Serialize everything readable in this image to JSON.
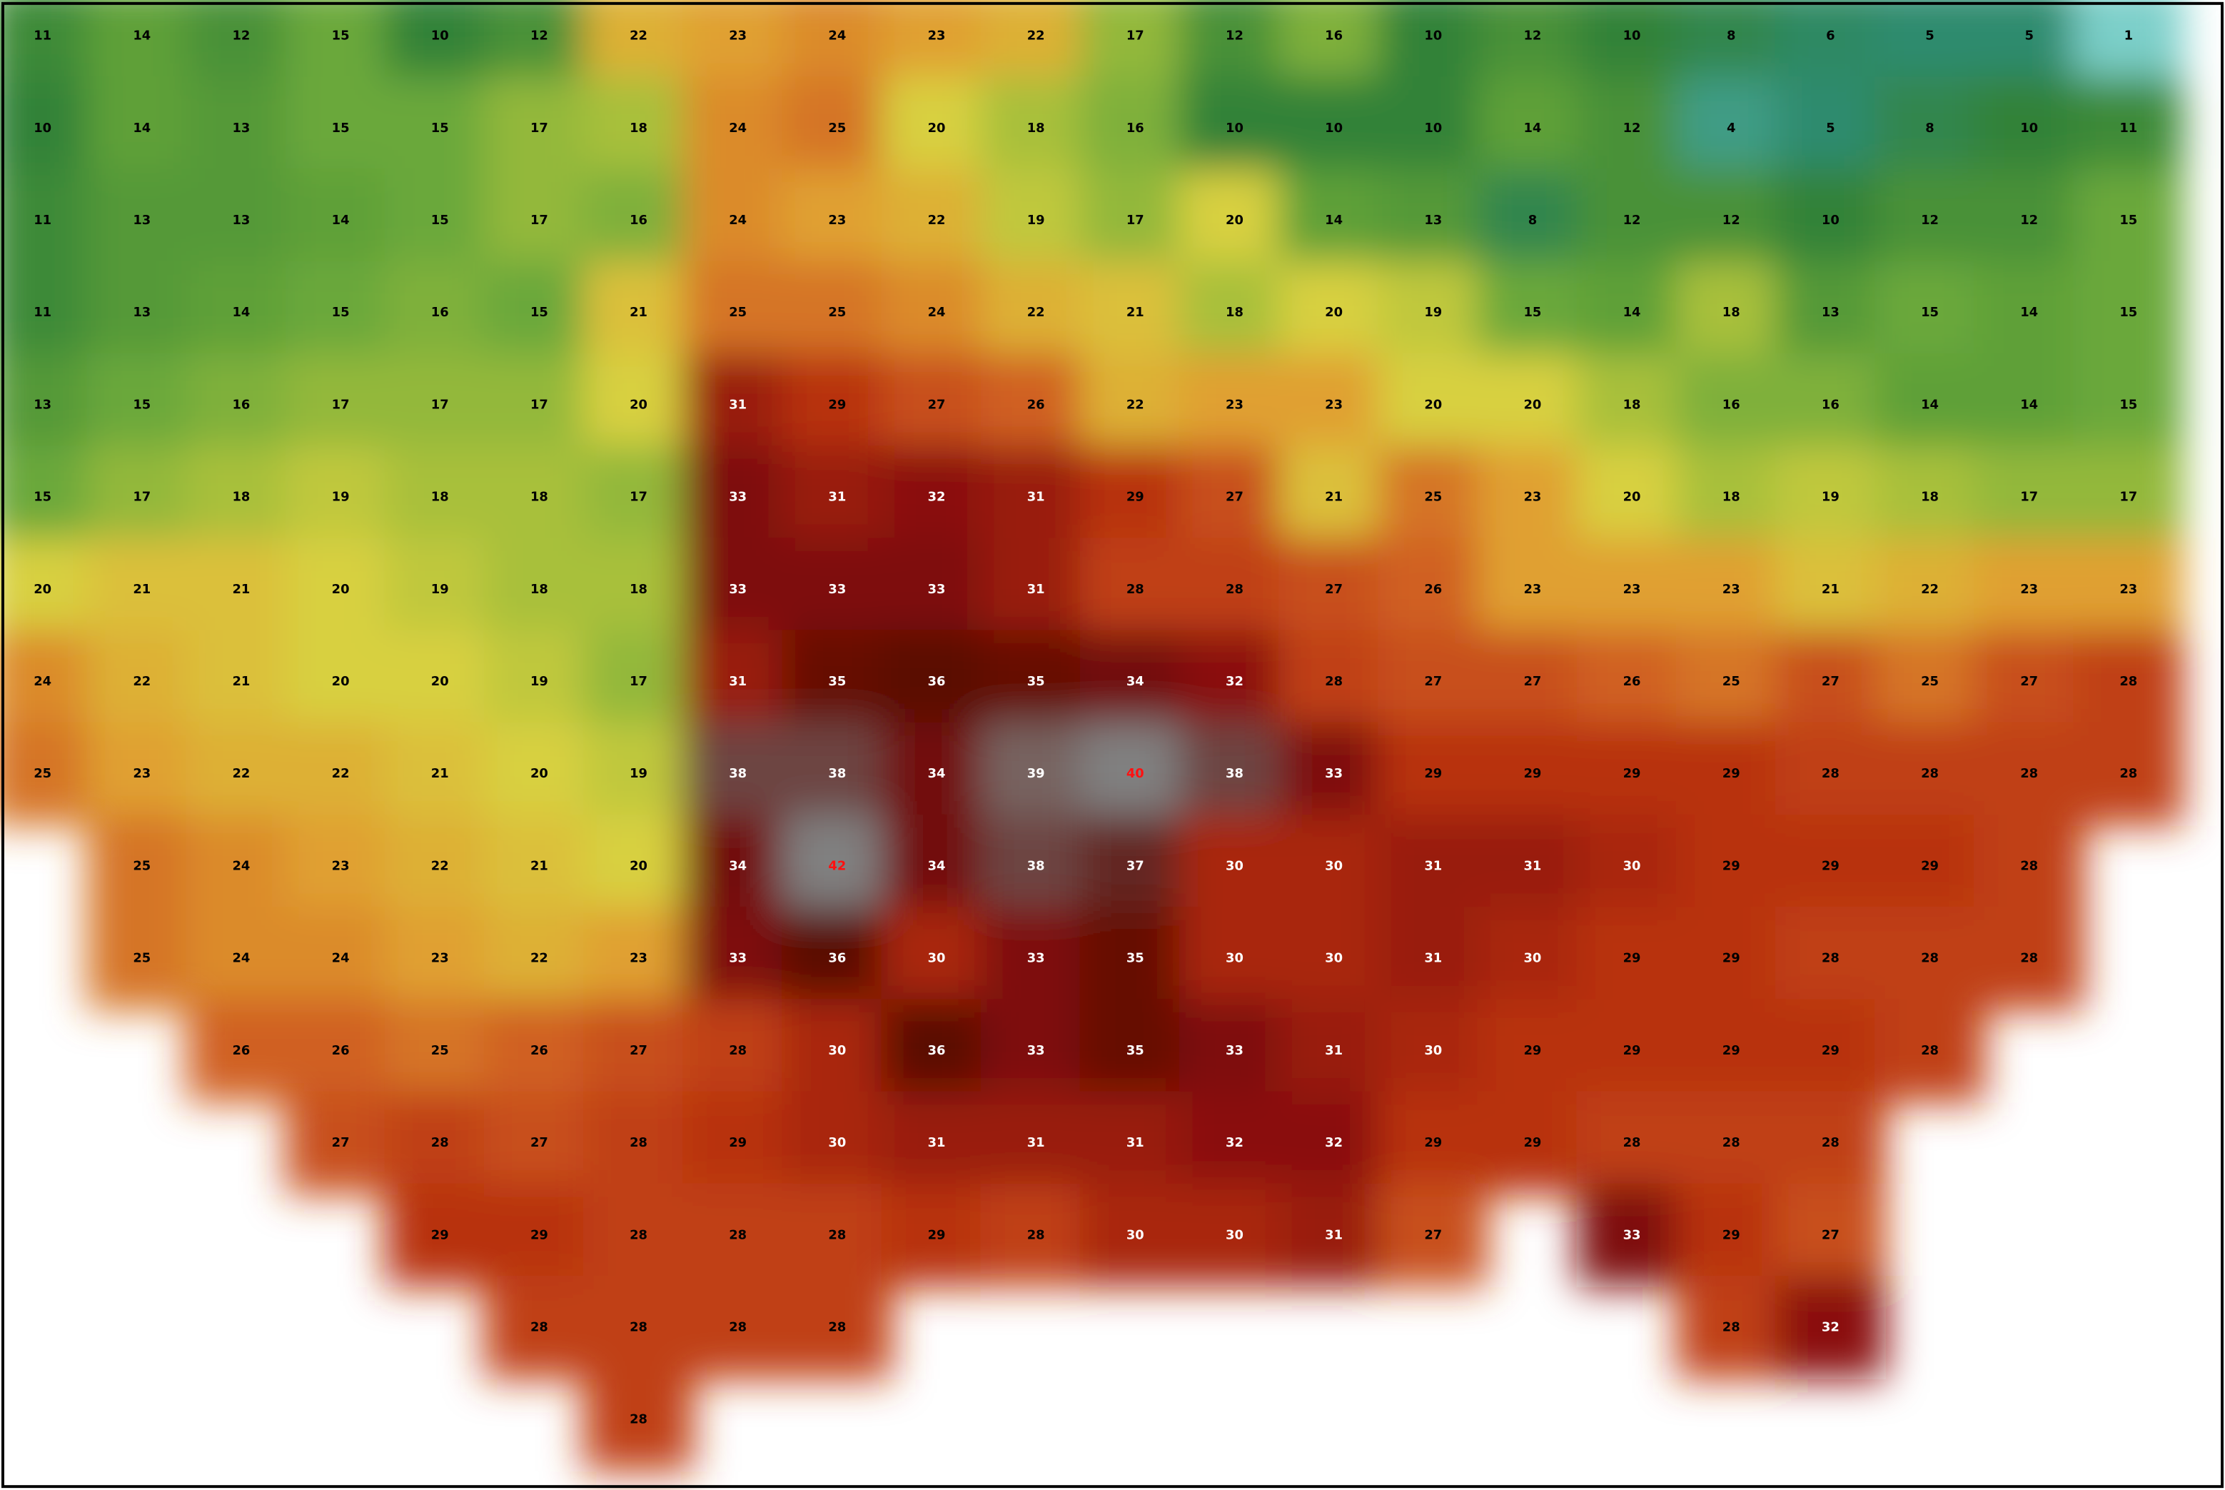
{
  "map": {
    "rows": [
      [
        11,
        14,
        12,
        15,
        10,
        12,
        22,
        23,
        24,
        23,
        22,
        17,
        12,
        16,
        10,
        12,
        10,
        8,
        6,
        5,
        5,
        1
      ],
      [
        10,
        14,
        13,
        15,
        15,
        17,
        18,
        24,
        25,
        20,
        18,
        16,
        10,
        10,
        10,
        14,
        12,
        4,
        5,
        8,
        10,
        11
      ],
      [
        11,
        13,
        13,
        14,
        15,
        17,
        16,
        24,
        23,
        22,
        19,
        17,
        20,
        14,
        13,
        8,
        12,
        12,
        10,
        12,
        12,
        15
      ],
      [
        11,
        13,
        14,
        15,
        16,
        15,
        21,
        25,
        25,
        24,
        22,
        21,
        18,
        20,
        19,
        15,
        14,
        18,
        13,
        15,
        14,
        15
      ],
      [
        13,
        15,
        16,
        17,
        17,
        17,
        20,
        31,
        29,
        27,
        26,
        22,
        23,
        23,
        20,
        20,
        18,
        16,
        16,
        14,
        14,
        15
      ],
      [
        15,
        17,
        18,
        19,
        18,
        18,
        17,
        33,
        31,
        32,
        31,
        29,
        27,
        21,
        25,
        23,
        20,
        18,
        19,
        18,
        17,
        17
      ],
      [
        20,
        21,
        21,
        20,
        19,
        18,
        18,
        33,
        33,
        33,
        31,
        28,
        28,
        27,
        26,
        23,
        23,
        23,
        21,
        22,
        23,
        23
      ],
      [
        24,
        22,
        21,
        20,
        20,
        19,
        17,
        31,
        35,
        36,
        35,
        34,
        32,
        28,
        27,
        27,
        26,
        25,
        27,
        25,
        27,
        28
      ],
      [
        25,
        23,
        22,
        22,
        21,
        20,
        19,
        38,
        38,
        34,
        39,
        40,
        38,
        33,
        29,
        29,
        29,
        29,
        28,
        28,
        28,
        28
      ],
      [
        null,
        25,
        24,
        23,
        22,
        21,
        20,
        34,
        42,
        34,
        38,
        37,
        30,
        30,
        31,
        31,
        30,
        29,
        29,
        29,
        28,
        null
      ],
      [
        null,
        25,
        24,
        24,
        23,
        22,
        23,
        33,
        36,
        30,
        33,
        35,
        30,
        30,
        31,
        30,
        29,
        29,
        28,
        28,
        28,
        null
      ],
      [
        null,
        null,
        26,
        26,
        25,
        26,
        27,
        28,
        30,
        36,
        33,
        35,
        33,
        31,
        30,
        29,
        29,
        29,
        29,
        28,
        null,
        null
      ],
      [
        null,
        null,
        null,
        27,
        28,
        27,
        28,
        29,
        30,
        31,
        31,
        31,
        32,
        32,
        29,
        29,
        28,
        28,
        28,
        null,
        null,
        null
      ],
      [
        null,
        null,
        null,
        null,
        29,
        29,
        28,
        28,
        28,
        29,
        28,
        30,
        30,
        31,
        27,
        null,
        33,
        29,
        27,
        null,
        null,
        null
      ],
      [
        null,
        null,
        null,
        null,
        null,
        28,
        28,
        28,
        28,
        null,
        null,
        null,
        null,
        null,
        null,
        null,
        null,
        28,
        32,
        null,
        null,
        null
      ],
      [
        null,
        null,
        null,
        null,
        null,
        null,
        28,
        null,
        null,
        null,
        null,
        null,
        null,
        null,
        null,
        null,
        null,
        null,
        null,
        null,
        null,
        null
      ]
    ]
  }
}
